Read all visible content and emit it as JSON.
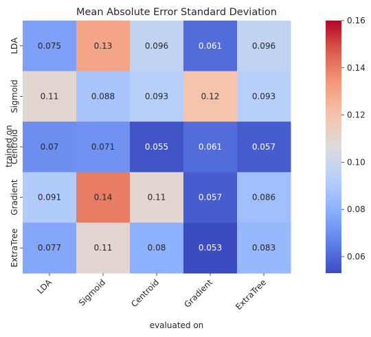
{
  "chart_data": {
    "type": "heatmap",
    "title": "Mean Absolute Error Standard Deviation",
    "xlabel": "evaluated on",
    "ylabel": "trained on",
    "x_categories": [
      "LDA",
      "Sigmoid",
      "Centroid",
      "Gradient",
      "ExtraTree"
    ],
    "y_categories": [
      "LDA",
      "Sigmoid",
      "Centroid",
      "Gradient",
      "ExtraTree"
    ],
    "values": [
      [
        0.075,
        0.13,
        0.096,
        0.061,
        0.096
      ],
      [
        0.11,
        0.088,
        0.093,
        0.12,
        0.093
      ],
      [
        0.07,
        0.071,
        0.055,
        0.061,
        0.057
      ],
      [
        0.091,
        0.14,
        0.11,
        0.057,
        0.086
      ],
      [
        0.077,
        0.11,
        0.08,
        0.053,
        0.083
      ]
    ],
    "colormap": "coolwarm",
    "vmin": 0.053,
    "vmax": 0.16,
    "colorbar_ticks": [
      0.06,
      0.08,
      0.1,
      0.12,
      0.14,
      0.16
    ],
    "colorbar_tick_labels": [
      "0.06",
      "0.08",
      "0.10",
      "0.12",
      "0.14",
      "0.16"
    ]
  },
  "colors": {
    "text_dark": "#262626",
    "text_light": "#ffffff"
  }
}
